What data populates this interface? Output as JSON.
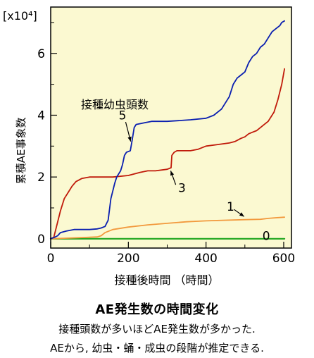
{
  "chart_data": {
    "type": "line",
    "title": "",
    "xlabel": "接種後時間 （時間）",
    "ylabel": "累積AE事象数",
    "y_unit": "[x10⁴]",
    "xlim": [
      0,
      620
    ],
    "ylim": [
      -0.3,
      7.5
    ],
    "xticks": [
      "0",
      "200",
      "400",
      "600"
    ],
    "yticks": [
      "0",
      "2",
      "4",
      "6"
    ],
    "grid": false,
    "background": "#fbf9d1",
    "legend_title": "接種幼虫頭数",
    "series": [
      {
        "name": "5",
        "color": "#0a1fb0",
        "x": [
          0,
          10,
          18,
          25,
          40,
          60,
          80,
          100,
          120,
          130,
          140,
          148,
          155,
          165,
          170,
          175,
          180,
          185,
          190,
          195,
          205,
          210,
          215,
          220,
          240,
          260,
          300,
          360,
          400,
          420,
          440,
          460,
          470,
          480,
          490,
          500,
          510,
          520,
          530,
          540,
          550,
          560,
          570,
          580,
          590,
          595,
          602
        ],
        "y": [
          0,
          0.05,
          0.1,
          0.2,
          0.25,
          0.3,
          0.3,
          0.3,
          0.32,
          0.35,
          0.4,
          0.6,
          1.3,
          1.8,
          2.0,
          2.1,
          2.2,
          2.4,
          2.7,
          2.8,
          2.85,
          3.2,
          3.6,
          3.7,
          3.75,
          3.8,
          3.8,
          3.85,
          3.9,
          4.0,
          4.2,
          4.6,
          5.0,
          5.2,
          5.3,
          5.4,
          5.7,
          5.9,
          6.0,
          6.2,
          6.3,
          6.5,
          6.7,
          6.8,
          6.9,
          7.0,
          7.05
        ]
      },
      {
        "name": "3",
        "color": "#c01a0a",
        "x": [
          0,
          8,
          15,
          25,
          35,
          45,
          55,
          65,
          80,
          100,
          130,
          160,
          200,
          230,
          250,
          270,
          300,
          310,
          312,
          318,
          325,
          335,
          360,
          380,
          400,
          430,
          460,
          475,
          490,
          500,
          510,
          520,
          530,
          550,
          560,
          575,
          585,
          595,
          602
        ],
        "y": [
          0,
          0.05,
          0.4,
          0.9,
          1.3,
          1.5,
          1.7,
          1.85,
          1.95,
          2.0,
          2.0,
          2.0,
          2.05,
          2.15,
          2.2,
          2.2,
          2.25,
          2.3,
          2.7,
          2.8,
          2.85,
          2.85,
          2.85,
          2.9,
          3.0,
          3.05,
          3.1,
          3.15,
          3.25,
          3.3,
          3.4,
          3.45,
          3.5,
          3.7,
          3.8,
          4.1,
          4.5,
          5.0,
          5.5
        ]
      },
      {
        "name": "1",
        "color": "#f2993d",
        "x": [
          0,
          40,
          80,
          120,
          130,
          140,
          160,
          200,
          250,
          300,
          350,
          400,
          450,
          500,
          540,
          560,
          580,
          602
        ],
        "y": [
          0,
          0.02,
          0.04,
          0.06,
          0.1,
          0.2,
          0.3,
          0.38,
          0.45,
          0.5,
          0.55,
          0.58,
          0.6,
          0.62,
          0.63,
          0.66,
          0.68,
          0.7
        ]
      },
      {
        "name": "0",
        "color": "#1ea61e",
        "x": [
          0,
          602
        ],
        "y": [
          0,
          0
        ]
      }
    ]
  },
  "captions": {
    "title": "AE発生数の時間変化",
    "line1": "接種頭数が多いほどAE発生数が多かった.",
    "line2": "AEから, 幼虫・蛹・成虫の段階が推定できる."
  }
}
